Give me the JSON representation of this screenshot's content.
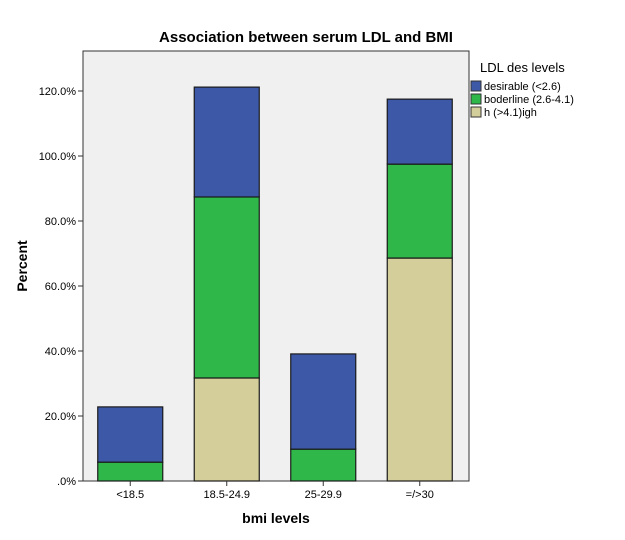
{
  "chart_data": {
    "type": "bar",
    "stacked": true,
    "title": "Association between serum LDL and BMI",
    "xlabel": "bmi levels",
    "ylabel": "Percent",
    "categories": [
      "<18.5",
      "18.5-24.9",
      "25-29.9",
      "=/>30"
    ],
    "ylim": [
      0,
      130
    ],
    "yticks": [
      0,
      20,
      40,
      60,
      80,
      100,
      120
    ],
    "ytick_labels": [
      ".0%",
      "20.0%",
      "40.0%",
      "60.0%",
      "80.0%",
      "100.0%",
      "120.0%"
    ],
    "grid": false,
    "legend": {
      "title": "LDL des levels",
      "placement": "right"
    },
    "series": [
      {
        "name": "h (>4.1)igh",
        "color": "#d4cf9a",
        "values": [
          0,
          31.7,
          0,
          68.6
        ]
      },
      {
        "name": "boderline (2.6-4.1)",
        "color": "#2fb74a",
        "values": [
          5.8,
          55.7,
          9.8,
          28.9
        ]
      },
      {
        "name": "desirable (<2.6)",
        "color": "#3e58a8",
        "values": [
          17.0,
          33.8,
          29.3,
          20.0
        ]
      }
    ],
    "legend_order": [
      "desirable (<2.6)",
      "boderline (2.6-4.1)",
      "h (>4.1)igh"
    ],
    "plot_background": "#f0f0f0"
  }
}
